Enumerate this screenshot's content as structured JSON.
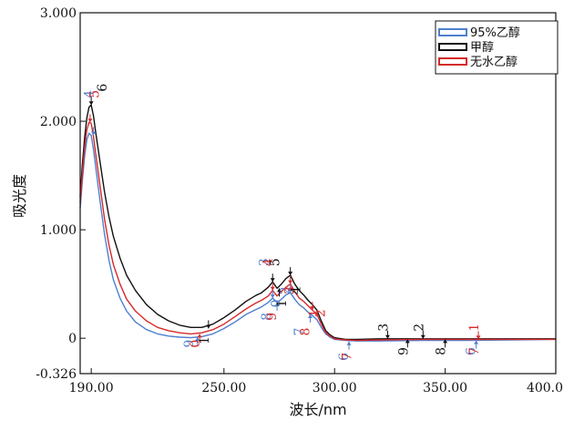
{
  "chart_data": {
    "type": "line",
    "title": "",
    "xlabel": "波长/nm",
    "ylabel": "吸光度",
    "xlim": [
      185,
      400
    ],
    "ylim": [
      -0.326,
      3.0
    ],
    "x_ticks": [
      190,
      250,
      300,
      350,
      400
    ],
    "x_tick_labels": [
      "190.00",
      "250.00",
      "300.00",
      "350.00",
      "400.0"
    ],
    "y_ticks": [
      -0.326,
      0,
      1.0,
      2.0,
      3.0
    ],
    "y_tick_labels": [
      "-0.326",
      "0",
      "1.000",
      "2.000",
      "3.000"
    ],
    "grid": false,
    "legend_position": "top-right",
    "series": [
      {
        "name": "95%乙醇",
        "color": "#4f7fcf",
        "points": [
          [
            185,
            1.2
          ],
          [
            186,
            1.45
          ],
          [
            187,
            1.68
          ],
          [
            188,
            1.83
          ],
          [
            189,
            1.89
          ],
          [
            190,
            1.87
          ],
          [
            191,
            1.74
          ],
          [
            192,
            1.58
          ],
          [
            194,
            1.26
          ],
          [
            196,
            0.96
          ],
          [
            198,
            0.72
          ],
          [
            200,
            0.54
          ],
          [
            203,
            0.37
          ],
          [
            206,
            0.25
          ],
          [
            210,
            0.15
          ],
          [
            215,
            0.08
          ],
          [
            220,
            0.04
          ],
          [
            225,
            0.02
          ],
          [
            230,
            0.01
          ],
          [
            235,
            0.005
          ],
          [
            240,
            0.015
          ],
          [
            245,
            0.04
          ],
          [
            250,
            0.09
          ],
          [
            255,
            0.15
          ],
          [
            260,
            0.22
          ],
          [
            264,
            0.26
          ],
          [
            267,
            0.29
          ],
          [
            270,
            0.33
          ],
          [
            272,
            0.37
          ],
          [
            274,
            0.33
          ],
          [
            276,
            0.36
          ],
          [
            278,
            0.4
          ],
          [
            280,
            0.42
          ],
          [
            282,
            0.36
          ],
          [
            284,
            0.31
          ],
          [
            286,
            0.28
          ],
          [
            288,
            0.24
          ],
          [
            290,
            0.21
          ],
          [
            292,
            0.17
          ],
          [
            294,
            0.1
          ],
          [
            296,
            0.04
          ],
          [
            298,
            0.01
          ],
          [
            300,
            -0.01
          ],
          [
            305,
            -0.02
          ],
          [
            310,
            -0.025
          ],
          [
            320,
            -0.025
          ],
          [
            340,
            -0.02
          ],
          [
            360,
            -0.02
          ],
          [
            380,
            -0.015
          ],
          [
            400,
            -0.01
          ]
        ]
      },
      {
        "name": "甲醇",
        "color": "#111111",
        "points": [
          [
            185,
            1.3
          ],
          [
            186,
            1.6
          ],
          [
            187,
            1.85
          ],
          [
            188,
            2.03
          ],
          [
            189,
            2.13
          ],
          [
            190,
            2.15
          ],
          [
            191,
            2.05
          ],
          [
            192,
            1.9
          ],
          [
            194,
            1.62
          ],
          [
            196,
            1.35
          ],
          [
            198,
            1.12
          ],
          [
            200,
            0.94
          ],
          [
            203,
            0.74
          ],
          [
            206,
            0.58
          ],
          [
            210,
            0.44
          ],
          [
            215,
            0.31
          ],
          [
            220,
            0.22
          ],
          [
            225,
            0.16
          ],
          [
            230,
            0.12
          ],
          [
            235,
            0.1
          ],
          [
            240,
            0.1
          ],
          [
            245,
            0.13
          ],
          [
            250,
            0.19
          ],
          [
            255,
            0.26
          ],
          [
            260,
            0.34
          ],
          [
            264,
            0.39
          ],
          [
            267,
            0.42
          ],
          [
            270,
            0.47
          ],
          [
            272,
            0.52
          ],
          [
            274,
            0.46
          ],
          [
            276,
            0.5
          ],
          [
            278,
            0.55
          ],
          [
            280,
            0.58
          ],
          [
            282,
            0.5
          ],
          [
            284,
            0.44
          ],
          [
            286,
            0.4
          ],
          [
            288,
            0.35
          ],
          [
            290,
            0.31
          ],
          [
            292,
            0.26
          ],
          [
            294,
            0.16
          ],
          [
            296,
            0.07
          ],
          [
            298,
            0.03
          ],
          [
            300,
            0.005
          ],
          [
            305,
            -0.01
          ],
          [
            310,
            -0.01
          ],
          [
            320,
            -0.005
          ],
          [
            340,
            -0.005
          ],
          [
            360,
            -0.005
          ],
          [
            380,
            -0.005
          ],
          [
            400,
            -0.005
          ]
        ]
      },
      {
        "name": "无水乙醇",
        "color": "#d62a2a",
        "points": [
          [
            185,
            1.25
          ],
          [
            186,
            1.52
          ],
          [
            187,
            1.76
          ],
          [
            188,
            1.92
          ],
          [
            189,
            1.99
          ],
          [
            190,
            1.98
          ],
          [
            191,
            1.86
          ],
          [
            192,
            1.7
          ],
          [
            194,
            1.4
          ],
          [
            196,
            1.1
          ],
          [
            198,
            0.86
          ],
          [
            200,
            0.68
          ],
          [
            203,
            0.5
          ],
          [
            206,
            0.36
          ],
          [
            210,
            0.25
          ],
          [
            215,
            0.16
          ],
          [
            220,
            0.1
          ],
          [
            225,
            0.07
          ],
          [
            230,
            0.05
          ],
          [
            235,
            0.04
          ],
          [
            240,
            0.05
          ],
          [
            245,
            0.08
          ],
          [
            250,
            0.13
          ],
          [
            255,
            0.2
          ],
          [
            260,
            0.27
          ],
          [
            264,
            0.32
          ],
          [
            267,
            0.35
          ],
          [
            270,
            0.39
          ],
          [
            272,
            0.44
          ],
          [
            274,
            0.39
          ],
          [
            276,
            0.43
          ],
          [
            278,
            0.47
          ],
          [
            280,
            0.5
          ],
          [
            282,
            0.43
          ],
          [
            284,
            0.37
          ],
          [
            286,
            0.34
          ],
          [
            288,
            0.3
          ],
          [
            290,
            0.26
          ],
          [
            292,
            0.22
          ],
          [
            294,
            0.13
          ],
          [
            296,
            0.05
          ],
          [
            298,
            0.02
          ],
          [
            300,
            -0.005
          ],
          [
            305,
            -0.015
          ],
          [
            310,
            -0.02
          ],
          [
            320,
            -0.015
          ],
          [
            340,
            -0.01
          ],
          [
            360,
            -0.01
          ],
          [
            380,
            -0.01
          ],
          [
            400,
            -0.01
          ]
        ]
      }
    ],
    "annotations": [
      {
        "text": "4",
        "x": 191,
        "y": 2.25,
        "color": "#4f7fcf"
      },
      {
        "text": "5",
        "x": 193.5,
        "y": 2.25,
        "color": "#d62a2a"
      },
      {
        "text": "6",
        "x": 197,
        "y": 2.31,
        "color": "#111111"
      },
      {
        "text": "1",
        "x": 243,
        "y": -0.02,
        "color": "#111111"
      },
      {
        "text": "9",
        "x": 236,
        "y": -0.05,
        "color": "#4f7fcf"
      },
      {
        "text": "0",
        "x": 239,
        "y": -0.05,
        "color": "#d62a2a"
      },
      {
        "text": "3",
        "x": 270,
        "y": 0.7,
        "color": "#4f7fcf"
      },
      {
        "text": "4",
        "x": 272,
        "y": 0.7,
        "color": "#d62a2a"
      },
      {
        "text": "5",
        "x": 275,
        "y": 0.7,
        "color": "#111111"
      },
      {
        "text": "8",
        "x": 271,
        "y": 0.2,
        "color": "#4f7fcf"
      },
      {
        "text": "9",
        "x": 273.5,
        "y": 0.2,
        "color": "#d62a2a"
      },
      {
        "text": "0",
        "x": 275.5,
        "y": 0.32,
        "color": "#4f7fcf"
      },
      {
        "text": "1",
        "x": 278,
        "y": 0.32,
        "color": "#111111"
      },
      {
        "text": "2",
        "x": 279.5,
        "y": 0.44,
        "color": "#4f7fcf"
      },
      {
        "text": "3",
        "x": 281.5,
        "y": 0.44,
        "color": "#d62a2a"
      },
      {
        "text": "4",
        "x": 284.5,
        "y": 0.44,
        "color": "#111111"
      },
      {
        "text": "7",
        "x": 286,
        "y": 0.06,
        "color": "#4f7fcf"
      },
      {
        "text": "8",
        "x": 288.5,
        "y": 0.06,
        "color": "#d62a2a"
      },
      {
        "text": "1",
        "x": 292.5,
        "y": 0.23,
        "color": "#d62a2a"
      },
      {
        "text": "2",
        "x": 295.5,
        "y": 0.23,
        "color": "#d62a2a"
      },
      {
        "text": "6",
        "x": 306,
        "y": -0.17,
        "color": "#4f7fcf"
      },
      {
        "text": "7",
        "x": 307.5,
        "y": -0.17,
        "color": "#d62a2a"
      },
      {
        "text": "3",
        "x": 324,
        "y": 0.1,
        "color": "#111111"
      },
      {
        "text": "2",
        "x": 340,
        "y": 0.1,
        "color": "#111111"
      },
      {
        "text": "9",
        "x": 333,
        "y": -0.12,
        "color": "#111111"
      },
      {
        "text": "8",
        "x": 350,
        "y": -0.12,
        "color": "#111111"
      },
      {
        "text": "1",
        "x": 365,
        "y": 0.1,
        "color": "#d62a2a"
      },
      {
        "text": "6",
        "x": 363.5,
        "y": -0.12,
        "color": "#4f7fcf"
      },
      {
        "text": "7",
        "x": 365,
        "y": -0.12,
        "color": "#d62a2a"
      }
    ],
    "markers": [
      {
        "x": 191,
        "y": 1.87,
        "dir": "down",
        "color": "#4f7fcf"
      },
      {
        "x": 189.5,
        "y": 1.99,
        "dir": "down",
        "color": "#d62a2a"
      },
      {
        "x": 190,
        "y": 2.15,
        "dir": "down",
        "color": "#111111"
      },
      {
        "x": 243,
        "y": 0.09,
        "dir": "down",
        "color": "#111111"
      },
      {
        "x": 238,
        "y": 0.01,
        "dir": "up",
        "color": "#4f7fcf"
      },
      {
        "x": 239,
        "y": 0.04,
        "dir": "up",
        "color": "#d62a2a"
      },
      {
        "x": 272,
        "y": 0.37,
        "dir": "down",
        "color": "#4f7fcf"
      },
      {
        "x": 272,
        "y": 0.44,
        "dir": "down",
        "color": "#d62a2a"
      },
      {
        "x": 272,
        "y": 0.52,
        "dir": "down",
        "color": "#111111"
      },
      {
        "x": 280,
        "y": 0.42,
        "dir": "down",
        "color": "#4f7fcf"
      },
      {
        "x": 280,
        "y": 0.5,
        "dir": "down",
        "color": "#d62a2a"
      },
      {
        "x": 280,
        "y": 0.58,
        "dir": "down",
        "color": "#111111"
      },
      {
        "x": 274,
        "y": 0.33,
        "dir": "up",
        "color": "#4f7fcf"
      },
      {
        "x": 275,
        "y": 0.46,
        "dir": "up",
        "color": "#111111"
      },
      {
        "x": 289,
        "y": 0.22,
        "dir": "up",
        "color": "#4f7fcf"
      },
      {
        "x": 290,
        "y": 0.26,
        "dir": "down",
        "color": "#d62a2a"
      },
      {
        "x": 306.5,
        "y": -0.03,
        "dir": "up",
        "color": "#4f7fcf"
      },
      {
        "x": 324,
        "y": -0.005,
        "dir": "down",
        "color": "#111111"
      },
      {
        "x": 340,
        "y": -0.005,
        "dir": "down",
        "color": "#111111"
      },
      {
        "x": 333,
        "y": -0.01,
        "dir": "up",
        "color": "#111111"
      },
      {
        "x": 350,
        "y": -0.01,
        "dir": "up",
        "color": "#111111"
      },
      {
        "x": 365,
        "y": -0.01,
        "dir": "down",
        "color": "#d62a2a"
      },
      {
        "x": 364,
        "y": -0.02,
        "dir": "up",
        "color": "#4f7fcf"
      }
    ]
  }
}
